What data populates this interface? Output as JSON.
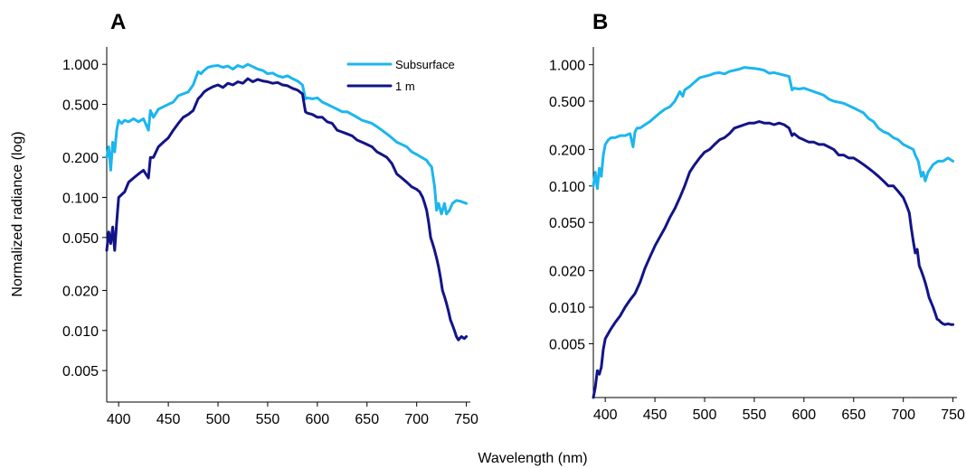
{
  "figure": {
    "xlabel": "Wavelength (nm)",
    "ylabel": "Normalized radiance (log)"
  },
  "colors": {
    "subsurface": "#1cb6ee",
    "one_m": "#121488"
  },
  "chart_data": [
    {
      "panel": "A",
      "type": "line",
      "yscale": "log",
      "xlim": [
        388,
        754
      ],
      "ylim": [
        0.0029,
        1.35
      ],
      "xticks": [
        400,
        450,
        500,
        550,
        600,
        650,
        700,
        750
      ],
      "yticks": [
        1.0,
        0.5,
        0.2,
        0.1,
        0.05,
        0.02,
        0.01,
        0.005
      ],
      "ytick_labels": [
        "1.000",
        "0.500",
        "0.200",
        "0.100",
        "0.050",
        "0.020",
        "0.010",
        "0.005"
      ],
      "legend": {
        "position": "top-right",
        "entries": [
          "Subsurface",
          "1 m"
        ]
      },
      "series": [
        {
          "name": "Subsurface",
          "color_key": "subsurface",
          "x": [
            388,
            390,
            392,
            394,
            396,
            398,
            400,
            403,
            406,
            410,
            415,
            420,
            425,
            430,
            432,
            435,
            440,
            445,
            450,
            455,
            460,
            465,
            470,
            475,
            480,
            483,
            486,
            490,
            495,
            500,
            505,
            510,
            515,
            520,
            525,
            530,
            535,
            540,
            545,
            550,
            555,
            560,
            565,
            570,
            575,
            580,
            585,
            588,
            590,
            595,
            600,
            605,
            610,
            615,
            620,
            625,
            630,
            635,
            640,
            645,
            650,
            655,
            660,
            665,
            670,
            675,
            680,
            685,
            690,
            695,
            700,
            705,
            710,
            712,
            715,
            718,
            720,
            722,
            725,
            728,
            730,
            733,
            736,
            740,
            745,
            750
          ],
          "y": [
            0.2,
            0.24,
            0.16,
            0.26,
            0.22,
            0.32,
            0.38,
            0.36,
            0.38,
            0.37,
            0.39,
            0.37,
            0.39,
            0.32,
            0.45,
            0.4,
            0.46,
            0.48,
            0.5,
            0.52,
            0.58,
            0.6,
            0.62,
            0.7,
            0.88,
            0.85,
            0.9,
            0.95,
            0.97,
            0.98,
            0.95,
            0.97,
            0.92,
            0.98,
            0.95,
            1.0,
            0.96,
            0.92,
            0.9,
            0.85,
            0.86,
            0.82,
            0.8,
            0.82,
            0.78,
            0.75,
            0.7,
            0.55,
            0.56,
            0.55,
            0.56,
            0.52,
            0.5,
            0.48,
            0.46,
            0.44,
            0.44,
            0.42,
            0.4,
            0.38,
            0.37,
            0.36,
            0.34,
            0.32,
            0.3,
            0.28,
            0.26,
            0.25,
            0.24,
            0.22,
            0.21,
            0.2,
            0.19,
            0.18,
            0.17,
            0.12,
            0.08,
            0.09,
            0.075,
            0.09,
            0.075,
            0.08,
            0.09,
            0.095,
            0.093,
            0.09
          ]
        },
        {
          "name": "1 m",
          "color_key": "one_m",
          "x": [
            388,
            390,
            392,
            394,
            396,
            398,
            400,
            403,
            406,
            410,
            415,
            420,
            425,
            430,
            432,
            435,
            440,
            445,
            450,
            455,
            460,
            465,
            470,
            475,
            480,
            483,
            486,
            490,
            495,
            500,
            505,
            510,
            515,
            520,
            525,
            530,
            535,
            540,
            545,
            550,
            555,
            560,
            565,
            570,
            575,
            580,
            585,
            588,
            590,
            595,
            600,
            605,
            610,
            615,
            620,
            625,
            630,
            635,
            640,
            645,
            650,
            655,
            660,
            665,
            670,
            675,
            680,
            685,
            690,
            695,
            700,
            703,
            706,
            708,
            710,
            712,
            714,
            716,
            718,
            720,
            722,
            724,
            726,
            728,
            730,
            732,
            734,
            736,
            738,
            740,
            742,
            745,
            748,
            750
          ],
          "y": [
            0.04,
            0.055,
            0.045,
            0.06,
            0.04,
            0.065,
            0.1,
            0.105,
            0.11,
            0.13,
            0.14,
            0.15,
            0.16,
            0.14,
            0.2,
            0.2,
            0.24,
            0.26,
            0.28,
            0.32,
            0.36,
            0.4,
            0.42,
            0.45,
            0.55,
            0.58,
            0.62,
            0.65,
            0.68,
            0.7,
            0.67,
            0.72,
            0.7,
            0.74,
            0.72,
            0.78,
            0.74,
            0.77,
            0.75,
            0.74,
            0.72,
            0.73,
            0.7,
            0.69,
            0.66,
            0.64,
            0.6,
            0.44,
            0.43,
            0.42,
            0.4,
            0.4,
            0.37,
            0.36,
            0.32,
            0.31,
            0.3,
            0.29,
            0.27,
            0.26,
            0.25,
            0.24,
            0.22,
            0.21,
            0.2,
            0.18,
            0.15,
            0.14,
            0.13,
            0.12,
            0.115,
            0.11,
            0.1,
            0.09,
            0.08,
            0.065,
            0.05,
            0.045,
            0.04,
            0.035,
            0.03,
            0.025,
            0.02,
            0.018,
            0.016,
            0.014,
            0.012,
            0.011,
            0.01,
            0.009,
            0.0085,
            0.009,
            0.0087,
            0.009
          ]
        }
      ]
    },
    {
      "panel": "B",
      "type": "line",
      "yscale": "log",
      "xlim": [
        388,
        754
      ],
      "ylim": [
        0.0018,
        1.4
      ],
      "xticks": [
        400,
        450,
        500,
        550,
        600,
        650,
        700,
        750
      ],
      "yticks": [
        1.0,
        0.5,
        0.2,
        0.1,
        0.05,
        0.02,
        0.01,
        0.005
      ],
      "ytick_labels": [
        "1.000",
        "0.500",
        "0.200",
        "0.100",
        "0.050",
        "0.020",
        "0.010",
        "0.005"
      ],
      "series": [
        {
          "name": "Subsurface",
          "color_key": "subsurface",
          "x": [
            388,
            390,
            392,
            394,
            396,
            398,
            400,
            403,
            406,
            410,
            415,
            420,
            425,
            428,
            430,
            432,
            435,
            440,
            445,
            450,
            455,
            460,
            465,
            470,
            475,
            478,
            480,
            485,
            490,
            495,
            500,
            505,
            510,
            515,
            520,
            525,
            530,
            535,
            540,
            545,
            550,
            555,
            560,
            565,
            570,
            575,
            580,
            585,
            588,
            590,
            595,
            600,
            605,
            610,
            615,
            620,
            625,
            630,
            635,
            640,
            645,
            650,
            655,
            660,
            665,
            670,
            675,
            680,
            685,
            690,
            695,
            700,
            705,
            710,
            712,
            715,
            718,
            720,
            722,
            725,
            730,
            735,
            740,
            745,
            750
          ],
          "y": [
            0.1,
            0.13,
            0.095,
            0.14,
            0.12,
            0.18,
            0.22,
            0.24,
            0.25,
            0.25,
            0.26,
            0.26,
            0.27,
            0.21,
            0.28,
            0.3,
            0.3,
            0.32,
            0.34,
            0.37,
            0.4,
            0.43,
            0.45,
            0.5,
            0.6,
            0.55,
            0.62,
            0.66,
            0.72,
            0.78,
            0.8,
            0.82,
            0.85,
            0.86,
            0.84,
            0.88,
            0.9,
            0.92,
            0.95,
            0.94,
            0.93,
            0.92,
            0.9,
            0.85,
            0.86,
            0.84,
            0.82,
            0.8,
            0.62,
            0.64,
            0.63,
            0.64,
            0.62,
            0.6,
            0.58,
            0.56,
            0.52,
            0.5,
            0.49,
            0.48,
            0.46,
            0.44,
            0.42,
            0.4,
            0.36,
            0.34,
            0.3,
            0.28,
            0.27,
            0.25,
            0.24,
            0.22,
            0.21,
            0.2,
            0.18,
            0.16,
            0.12,
            0.13,
            0.11,
            0.13,
            0.15,
            0.16,
            0.16,
            0.17,
            0.16
          ]
        },
        {
          "name": "1 m",
          "color_key": "one_m",
          "x": [
            388,
            390,
            392,
            394,
            396,
            398,
            400,
            405,
            410,
            415,
            420,
            425,
            430,
            435,
            440,
            445,
            450,
            455,
            460,
            465,
            470,
            475,
            480,
            485,
            490,
            495,
            500,
            505,
            510,
            515,
            520,
            525,
            530,
            535,
            540,
            545,
            550,
            555,
            560,
            565,
            570,
            575,
            580,
            585,
            588,
            590,
            595,
            600,
            605,
            610,
            615,
            620,
            625,
            630,
            635,
            640,
            645,
            650,
            655,
            660,
            665,
            670,
            675,
            680,
            685,
            690,
            695,
            700,
            703,
            706,
            708,
            710,
            712,
            714,
            716,
            718,
            720,
            722,
            724,
            726,
            728,
            730,
            732,
            734,
            736,
            738,
            740,
            742,
            745,
            748,
            750
          ],
          "y": [
            0.0018,
            0.0022,
            0.003,
            0.0028,
            0.0032,
            0.0045,
            0.0055,
            0.0065,
            0.0075,
            0.0085,
            0.01,
            0.0115,
            0.013,
            0.016,
            0.021,
            0.026,
            0.032,
            0.038,
            0.045,
            0.055,
            0.065,
            0.08,
            0.1,
            0.13,
            0.15,
            0.17,
            0.19,
            0.2,
            0.22,
            0.24,
            0.25,
            0.27,
            0.3,
            0.31,
            0.32,
            0.33,
            0.33,
            0.34,
            0.33,
            0.33,
            0.32,
            0.33,
            0.32,
            0.3,
            0.26,
            0.27,
            0.25,
            0.24,
            0.23,
            0.23,
            0.22,
            0.22,
            0.21,
            0.2,
            0.18,
            0.18,
            0.17,
            0.17,
            0.16,
            0.15,
            0.14,
            0.13,
            0.12,
            0.11,
            0.1,
            0.1,
            0.09,
            0.08,
            0.07,
            0.06,
            0.045,
            0.035,
            0.028,
            0.03,
            0.022,
            0.02,
            0.018,
            0.016,
            0.014,
            0.012,
            0.011,
            0.01,
            0.009,
            0.008,
            0.0078,
            0.0075,
            0.0073,
            0.0072,
            0.0073,
            0.0072,
            0.0072
          ]
        }
      ]
    }
  ]
}
